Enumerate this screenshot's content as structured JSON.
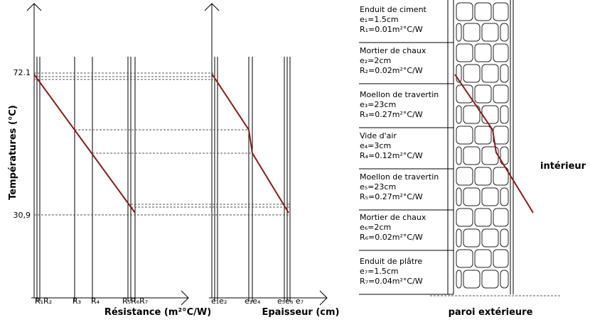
{
  "resistance_panel": {
    "y_axis_title": "Températures (°C)",
    "y_labels": [
      "72.1",
      "30,9"
    ],
    "x_axis_title": "Résistance (m²°C/W)",
    "x_labels": [
      "R₁R₂",
      "R₃",
      "R₄",
      "R₅R₆R₇"
    ]
  },
  "thickness_panel": {
    "x_axis_title": "Epaisseur (cm)",
    "x_labels": [
      "e₁e₂",
      "e₃e₄",
      "e₅e₆ e₇"
    ]
  },
  "wall": {
    "inside_label": "intérieur",
    "outside_label": "paroi extérieure",
    "layers": [
      {
        "name": "Enduit de ciment",
        "thickness": "e₁=1.5cm",
        "resistance": "R₁=0.01m²°C/W"
      },
      {
        "name": "Mortier de chaux",
        "thickness": "e₂=2cm",
        "resistance": "R₂=0.02m²°C/W"
      },
      {
        "name": "Moellon de travertin",
        "thickness": "e₃=23cm",
        "resistance": "R₃=0.27m²°C/W"
      },
      {
        "name": "Vide d'air",
        "thickness": "e₄=3cm",
        "resistance": "R₄=0.12m²°C/W"
      },
      {
        "name": "Moellon de travertin",
        "thickness": "e₅=23cm",
        "resistance": "R₅=0.27m²°C/W"
      },
      {
        "name": "Mortier de chaux",
        "thickness": "e₆=2cm",
        "resistance": "R₆=0.02m²°C/W"
      },
      {
        "name": "Enduit de plâtre",
        "thickness": "e₇=1.5cm",
        "resistance": "R₇=0.04m²°C/W"
      }
    ]
  }
}
